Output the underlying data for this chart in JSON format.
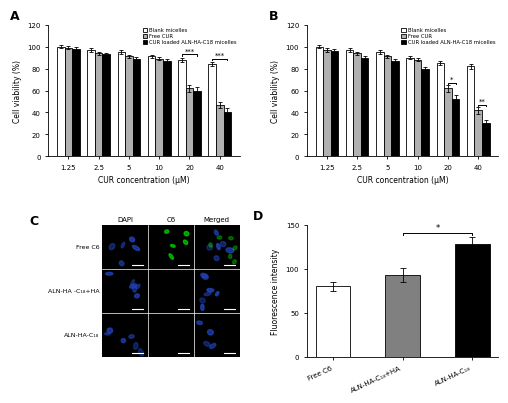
{
  "panel_A": {
    "title": "A",
    "concentrations": [
      "1.25",
      "2.5",
      "5",
      "10",
      "20",
      "40"
    ],
    "blank_micelles": [
      100,
      97,
      95,
      91,
      88,
      84
    ],
    "free_cur": [
      99,
      94,
      91,
      89,
      62,
      47
    ],
    "cur_loaded": [
      98,
      93,
      89,
      87,
      60,
      40
    ],
    "blank_err": [
      1.5,
      1.5,
      1.5,
      1.5,
      2,
      2
    ],
    "free_cur_err": [
      1.5,
      1.5,
      1.5,
      1.5,
      3,
      3
    ],
    "cur_loaded_err": [
      1.5,
      1.5,
      1.5,
      1.5,
      3,
      4
    ],
    "xlabel": "CUR concentration (μM)",
    "ylabel": "Cell viability (%)",
    "ylim": [
      0,
      120
    ],
    "yticks": [
      0,
      20,
      40,
      60,
      80,
      100,
      120
    ],
    "sig_20": "***",
    "sig_40": "***"
  },
  "panel_B": {
    "title": "B",
    "concentrations": [
      "1.25",
      "2.5",
      "5",
      "10",
      "20",
      "40"
    ],
    "blank_micelles": [
      100,
      97,
      95,
      90,
      85,
      82
    ],
    "free_cur": [
      97,
      94,
      91,
      88,
      62,
      42
    ],
    "cur_loaded": [
      96,
      90,
      87,
      80,
      52,
      30
    ],
    "blank_err": [
      1.5,
      1.5,
      1.5,
      1.5,
      2,
      2
    ],
    "free_cur_err": [
      1.5,
      1.5,
      1.5,
      1.5,
      3,
      3
    ],
    "cur_loaded_err": [
      1.5,
      1.5,
      1.5,
      1.5,
      4,
      3
    ],
    "xlabel": "CUR concentration (μM)",
    "ylabel": "Cell viability (%)",
    "ylim": [
      0,
      120
    ],
    "yticks": [
      0,
      20,
      40,
      60,
      80,
      100,
      120
    ],
    "sig_20": "*",
    "sig_40": "**"
  },
  "panel_C": {
    "title": "C",
    "rows": [
      "Free C6",
      "ALN-HA -C₁₈+HA",
      "ALN-HA-C₁₈"
    ],
    "cols": [
      "DAPI",
      "C6",
      "Merged"
    ]
  },
  "panel_D": {
    "title": "D",
    "categories": [
      "Free C6",
      "ALN-HA-C₁₈+HA",
      "ALN-HA-C₁₈"
    ],
    "values": [
      80,
      93,
      128
    ],
    "errors": [
      5,
      8,
      8
    ],
    "colors": [
      "white",
      "#808080",
      "black"
    ],
    "ylabel": "Fluorescence intensity",
    "ylim": [
      0,
      150
    ],
    "yticks": [
      0,
      50,
      100,
      150
    ],
    "sig": "*"
  },
  "bar_colors": {
    "blank": "white",
    "free": "#b0b0b0",
    "loaded": "black"
  },
  "legend_labels": [
    "Blank micelles",
    "Free CUR",
    "CUR loaded ALN-HA-C18 micelles"
  ]
}
